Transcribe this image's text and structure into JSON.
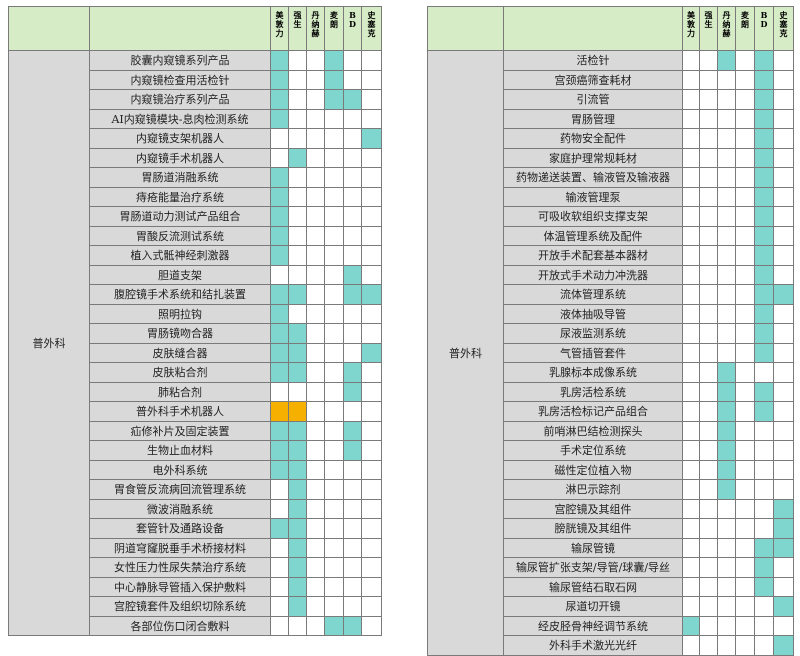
{
  "tables": [
    {
      "id": "left",
      "department": "普外科",
      "companies": [
        "美敦力",
        "强生",
        "丹纳赫",
        "麦朗",
        "BD",
        "史塞克"
      ],
      "rows": [
        {
          "product": "胶囊内窥镜系列产品",
          "cells": [
            1,
            0,
            0,
            1,
            0,
            0
          ]
        },
        {
          "product": "内窥镜检查用活检针",
          "cells": [
            1,
            0,
            0,
            1,
            0,
            0
          ]
        },
        {
          "product": "内窥镜治疗系列产品",
          "cells": [
            1,
            0,
            0,
            1,
            1,
            0
          ]
        },
        {
          "product": "AI内窥镜模块-息肉检测系统",
          "cells": [
            1,
            0,
            0,
            0,
            0,
            0
          ]
        },
        {
          "product": "内窥镜支架机器人",
          "cells": [
            0,
            0,
            0,
            0,
            0,
            1
          ]
        },
        {
          "product": "内窥镜手术机器人",
          "cells": [
            0,
            1,
            0,
            0,
            0,
            0
          ]
        },
        {
          "product": "胃肠道消融系统",
          "cells": [
            1,
            0,
            0,
            0,
            0,
            0
          ]
        },
        {
          "product": "痔疮能量治疗系统",
          "cells": [
            1,
            0,
            0,
            0,
            0,
            0
          ]
        },
        {
          "product": "胃肠道动力测试产品组合",
          "cells": [
            1,
            0,
            0,
            0,
            0,
            0
          ]
        },
        {
          "product": "胃酸反流测试系统",
          "cells": [
            1,
            0,
            0,
            0,
            0,
            0
          ]
        },
        {
          "product": "植入式骶神经刺激器",
          "cells": [
            1,
            0,
            0,
            0,
            0,
            0
          ]
        },
        {
          "product": "胆道支架",
          "cells": [
            0,
            0,
            0,
            0,
            1,
            0
          ]
        },
        {
          "product": "腹腔镜手术系统和结扎装置",
          "cells": [
            1,
            1,
            0,
            0,
            1,
            1
          ]
        },
        {
          "product": "照明拉钩",
          "cells": [
            1,
            0,
            0,
            0,
            0,
            0
          ]
        },
        {
          "product": "胃肠镜吻合器",
          "cells": [
            1,
            1,
            0,
            0,
            0,
            0
          ]
        },
        {
          "product": "皮肤缝合器",
          "cells": [
            1,
            1,
            0,
            0,
            0,
            1
          ]
        },
        {
          "product": "皮肤粘合剂",
          "cells": [
            1,
            1,
            0,
            0,
            1,
            0
          ]
        },
        {
          "product": "肺粘合剂",
          "cells": [
            0,
            0,
            0,
            0,
            1,
            0
          ]
        },
        {
          "product": "普外科手术机器人",
          "cells": [
            2,
            2,
            0,
            0,
            0,
            0
          ]
        },
        {
          "product": "疝修补片及固定装置",
          "cells": [
            1,
            1,
            0,
            0,
            1,
            0
          ]
        },
        {
          "product": "生物止血材料",
          "cells": [
            1,
            1,
            0,
            0,
            1,
            0
          ]
        },
        {
          "product": "电外科系统",
          "cells": [
            1,
            1,
            0,
            0,
            0,
            0
          ]
        },
        {
          "product": "胃食管反流病回流管理系统",
          "cells": [
            0,
            1,
            0,
            0,
            0,
            0
          ]
        },
        {
          "product": "微波消融系统",
          "cells": [
            0,
            1,
            0,
            0,
            0,
            0
          ]
        },
        {
          "product": "套管针及通路设备",
          "cells": [
            1,
            1,
            0,
            0,
            0,
            0
          ]
        },
        {
          "product": "阴道穹窿脱垂手术桥接材料",
          "cells": [
            0,
            1,
            0,
            0,
            0,
            0
          ]
        },
        {
          "product": "女性压力性尿失禁治疗系统",
          "cells": [
            0,
            1,
            0,
            0,
            0,
            0
          ]
        },
        {
          "product": "中心静脉导管插入保护敷料",
          "cells": [
            0,
            1,
            0,
            0,
            0,
            0
          ]
        },
        {
          "product": "宫腔镜套件及组织切除系统",
          "cells": [
            0,
            1,
            0,
            0,
            0,
            0
          ]
        },
        {
          "product": "各部位伤口闭合敷料",
          "cells": [
            0,
            0,
            0,
            1,
            1,
            0
          ]
        }
      ]
    },
    {
      "id": "right",
      "department": "普外科",
      "companies": [
        "美敦力",
        "强生",
        "丹纳赫",
        "麦朗",
        "BD",
        "史塞克"
      ],
      "rows": [
        {
          "product": "活检针",
          "cells": [
            0,
            0,
            1,
            0,
            1,
            0
          ]
        },
        {
          "product": "宫颈癌筛查耗材",
          "cells": [
            0,
            0,
            0,
            0,
            1,
            0
          ]
        },
        {
          "product": "引流管",
          "cells": [
            0,
            0,
            0,
            0,
            1,
            0
          ]
        },
        {
          "product": "胃肠管理",
          "cells": [
            0,
            0,
            0,
            0,
            1,
            0
          ]
        },
        {
          "product": "药物安全配件",
          "cells": [
            0,
            0,
            0,
            0,
            1,
            0
          ]
        },
        {
          "product": "家庭护理常规耗材",
          "cells": [
            0,
            0,
            0,
            0,
            1,
            0
          ]
        },
        {
          "product": "药物递送装置、输液管及输液器",
          "cells": [
            0,
            0,
            0,
            0,
            1,
            0
          ]
        },
        {
          "product": "输液管理泵",
          "cells": [
            0,
            0,
            0,
            0,
            1,
            0
          ]
        },
        {
          "product": "可吸收软组织支撑支架",
          "cells": [
            0,
            0,
            0,
            0,
            1,
            0
          ]
        },
        {
          "product": "体温管理系统及配件",
          "cells": [
            0,
            0,
            0,
            0,
            1,
            0
          ]
        },
        {
          "product": "开放手术配套基本器材",
          "cells": [
            0,
            0,
            0,
            0,
            1,
            0
          ]
        },
        {
          "product": "开放式手术动力冲洗器",
          "cells": [
            0,
            0,
            0,
            0,
            1,
            0
          ]
        },
        {
          "product": "流体管理系统",
          "cells": [
            0,
            0,
            0,
            0,
            1,
            1
          ]
        },
        {
          "product": "液体抽吸导管",
          "cells": [
            0,
            0,
            0,
            0,
            1,
            0
          ]
        },
        {
          "product": "尿液监测系统",
          "cells": [
            0,
            0,
            0,
            0,
            1,
            0
          ]
        },
        {
          "product": "气管插管套件",
          "cells": [
            0,
            0,
            0,
            0,
            1,
            0
          ]
        },
        {
          "product": "乳腺标本成像系统",
          "cells": [
            0,
            0,
            1,
            0,
            0,
            0
          ]
        },
        {
          "product": "乳房活检系统",
          "cells": [
            0,
            0,
            1,
            0,
            1,
            0
          ]
        },
        {
          "product": "乳房活检标记产品组合",
          "cells": [
            0,
            0,
            1,
            0,
            1,
            0
          ]
        },
        {
          "product": "前哨淋巴结检测探头",
          "cells": [
            0,
            0,
            1,
            0,
            0,
            0
          ]
        },
        {
          "product": "手术定位系统",
          "cells": [
            0,
            0,
            1,
            0,
            0,
            0
          ]
        },
        {
          "product": "磁性定位植入物",
          "cells": [
            0,
            0,
            1,
            0,
            0,
            0
          ]
        },
        {
          "product": "淋巴示踪剂",
          "cells": [
            0,
            0,
            1,
            0,
            0,
            0
          ]
        },
        {
          "product": "宫腔镜及其组件",
          "cells": [
            0,
            0,
            0,
            0,
            0,
            1
          ]
        },
        {
          "product": "膀胱镜及其组件",
          "cells": [
            0,
            0,
            0,
            0,
            0,
            1
          ]
        },
        {
          "product": "输尿管镜",
          "cells": [
            0,
            0,
            0,
            0,
            1,
            1
          ]
        },
        {
          "product": "输尿管扩张支架/导管/球囊/导丝",
          "cells": [
            0,
            0,
            0,
            0,
            1,
            0
          ]
        },
        {
          "product": "输尿管结石取石网",
          "cells": [
            0,
            0,
            0,
            0,
            1,
            0
          ]
        },
        {
          "product": "尿道切开镜",
          "cells": [
            0,
            0,
            0,
            0,
            0,
            1
          ]
        },
        {
          "product": "经皮胫骨神经调节系统",
          "cells": [
            1,
            0,
            0,
            0,
            0,
            0
          ]
        },
        {
          "product": "外科手术激光光纤",
          "cells": [
            0,
            0,
            0,
            0,
            0,
            1
          ]
        }
      ]
    }
  ]
}
